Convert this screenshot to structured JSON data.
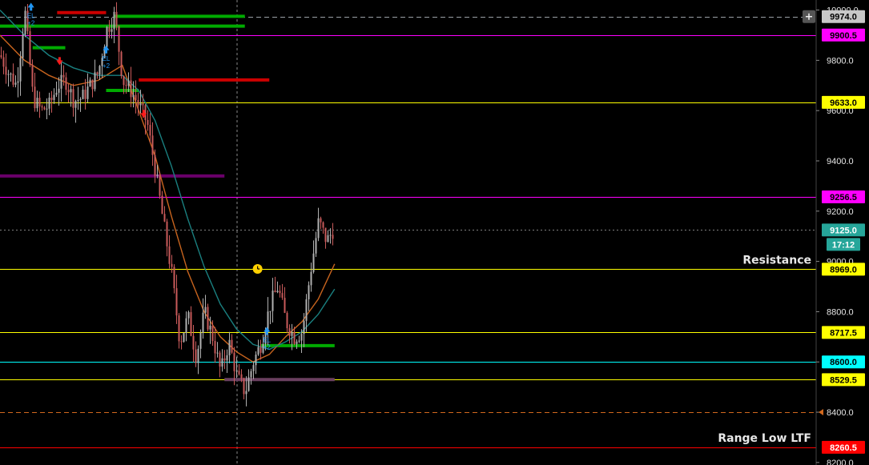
{
  "chart_data": {
    "type": "candlestick",
    "instrument_timeframe": "",
    "y_axis": {
      "ticks": [
        8200,
        8400,
        8600,
        8800,
        9000,
        9200,
        9400,
        9600,
        9800,
        10000
      ],
      "ylim": [
        8190,
        10040
      ],
      "position": "right"
    },
    "grid": false,
    "horizontal_levels": [
      {
        "value": 9974.0,
        "label": "9974.0",
        "color": "#9aa0a6",
        "style": "dashed",
        "tag_bg": "#c8c8c8",
        "tag_fg": "#000000",
        "plus_icon": true
      },
      {
        "value": 9900.5,
        "label": "9900.5",
        "color": "#ff00ff",
        "style": "solid",
        "tag_bg": "#ff00ff",
        "tag_fg": "#000000"
      },
      {
        "value": 9633.0,
        "label": "9633.0",
        "color": "#ffff00",
        "style": "solid",
        "tag_bg": "#ffff00",
        "tag_fg": "#000000"
      },
      {
        "value": 9256.5,
        "label": "9256.5",
        "color": "#ff00ff",
        "style": "solid",
        "tag_bg": "#ff00ff",
        "tag_fg": "#000000"
      },
      {
        "value": 9125.0,
        "label": "9125.0",
        "color": "#7f7f7f",
        "style": "dotted",
        "tag_bg": "#26a69a",
        "tag_fg": "#ffffff"
      },
      {
        "value": 8969.0,
        "label": "8969.0",
        "color": "#ffff00",
        "style": "solid",
        "tag_bg": "#ffff00",
        "tag_fg": "#000000"
      },
      {
        "value": 8717.5,
        "label": "8717.5",
        "color": "#ffff00",
        "style": "solid",
        "tag_bg": "#ffff00",
        "tag_fg": "#000000"
      },
      {
        "value": 8600.0,
        "label": "8600.0",
        "color": "#00ffff",
        "style": "solid",
        "tag_bg": "#00ffff",
        "tag_fg": "#000000"
      },
      {
        "value": 8529.5,
        "label": "8529.5",
        "color": "#ffff00",
        "style": "solid",
        "tag_bg": "#ffff00",
        "tag_fg": "#000000"
      },
      {
        "value": 8400.0,
        "label": "",
        "color": "#d2691e",
        "style": "dashed",
        "tag_bg": "",
        "tag_fg": "",
        "marker": true
      },
      {
        "value": 8260.5,
        "label": "8260.5",
        "color": "#ff0000",
        "style": "solid",
        "tag_bg": "#ff0000",
        "tag_fg": "#ffffff"
      }
    ],
    "countdown": {
      "value": "17:12",
      "bg": "#26a69a",
      "fg": "#ffffff"
    },
    "zone_labels": [
      {
        "text": "Resistance",
        "value": 8969.0
      },
      {
        "text": "Range Low LTF",
        "value": 8260.5
      }
    ],
    "level_segments": [
      {
        "x_start": 0,
        "x_end": 0.3,
        "value": 9936,
        "color": "#00aa00"
      },
      {
        "x_start": 0.14,
        "x_end": 0.3,
        "value": 9975,
        "color": "#00aa00"
      },
      {
        "x_start": 0.07,
        "x_end": 0.13,
        "value": 9990,
        "color": "#cc0000"
      },
      {
        "x_start": 0.17,
        "x_end": 0.33,
        "value": 9722,
        "color": "#cc0000"
      },
      {
        "x_start": 0.13,
        "x_end": 0.17,
        "value": 9680,
        "color": "#00aa00"
      },
      {
        "x_start": 0.04,
        "x_end": 0.08,
        "value": 9850,
        "color": "#00aa00"
      },
      {
        "x_start": 0,
        "x_end": 0.275,
        "value": 9340,
        "color": "#6a006a"
      },
      {
        "x_start": 0.32,
        "x_end": 0.41,
        "value": 8665,
        "color": "#00aa00"
      },
      {
        "x_start": 0.275,
        "x_end": 0.41,
        "value": 8530,
        "color": "#6a4060"
      }
    ],
    "signals": [
      {
        "x": 0.038,
        "value": 10010,
        "dir": "up",
        "color": "#2196f3",
        "text": "EL",
        "sub": "+2"
      },
      {
        "x": 0.13,
        "value": 9840,
        "dir": "up",
        "color": "#2196f3",
        "text": "EL",
        "sub": "+2"
      },
      {
        "x": 0.327,
        "value": 8720,
        "dir": "up",
        "color": "#2196f3",
        "text": "EL",
        "sub": "+2"
      },
      {
        "x": 0.073,
        "value": 9800,
        "dir": "down",
        "color": "#ff1a1a",
        "text": "",
        "sub": ""
      },
      {
        "x": 0.176,
        "value": 9590,
        "dir": "down",
        "color": "#ff1a1a",
        "text": "",
        "sub": ""
      }
    ],
    "alarm_icon": {
      "x": 0.296,
      "value": 8970
    },
    "moving_averages": [
      {
        "name": "",
        "color": "#c8641e",
        "x": [
          0,
          0.03,
          0.06,
          0.09,
          0.12,
          0.15,
          0.17,
          0.19,
          0.21,
          0.23,
          0.25,
          0.27,
          0.29,
          0.31,
          0.33,
          0.35,
          0.37,
          0.39,
          0.41
        ],
        "values": [
          9900,
          9800,
          9740,
          9700,
          9720,
          9780,
          9600,
          9420,
          9180,
          8960,
          8800,
          8700,
          8640,
          8600,
          8630,
          8700,
          8760,
          8850,
          8990
        ]
      },
      {
        "name": "",
        "color": "#1a8080",
        "x": [
          0,
          0.03,
          0.06,
          0.09,
          0.12,
          0.15,
          0.17,
          0.19,
          0.21,
          0.23,
          0.25,
          0.27,
          0.29,
          0.31,
          0.33,
          0.35,
          0.37,
          0.39,
          0.41
        ],
        "values": [
          10000,
          9900,
          9820,
          9770,
          9740,
          9740,
          9680,
          9560,
          9380,
          9170,
          8980,
          8830,
          8730,
          8670,
          8650,
          8680,
          8720,
          8790,
          8890
        ]
      }
    ],
    "price_path": {
      "x": [
        0,
        0.01,
        0.02,
        0.03,
        0.04,
        0.05,
        0.06,
        0.07,
        0.08,
        0.09,
        0.1,
        0.11,
        0.12,
        0.13,
        0.14,
        0.15,
        0.16,
        0.17,
        0.18,
        0.19,
        0.2,
        0.21,
        0.22,
        0.23,
        0.24,
        0.25,
        0.26,
        0.27,
        0.28,
        0.29,
        0.3,
        0.31,
        0.32,
        0.33,
        0.34,
        0.35,
        0.36,
        0.37,
        0.38,
        0.39,
        0.4,
        0.41
      ],
      "values": [
        9820,
        9750,
        9700,
        10000,
        9650,
        9600,
        9620,
        9700,
        9720,
        9640,
        9650,
        9700,
        9750,
        9920,
        9980,
        9720,
        9680,
        9620,
        9550,
        9360,
        9150,
        8950,
        8680,
        8780,
        8620,
        8800,
        8700,
        8560,
        8680,
        8540,
        8480,
        8600,
        8680,
        8820,
        8900,
        8760,
        8700,
        8720,
        8960,
        9160,
        9080,
        9140
      ]
    }
  }
}
